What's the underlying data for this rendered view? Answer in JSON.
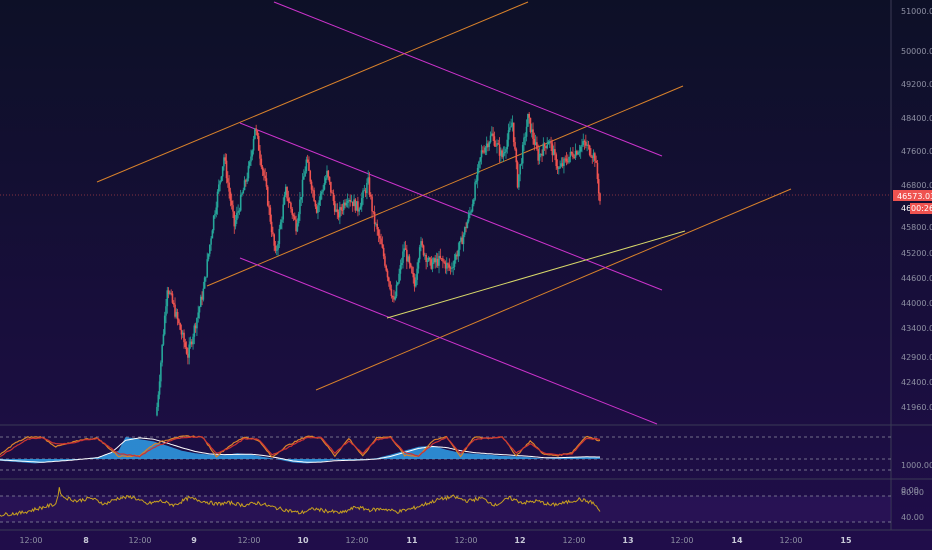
{
  "theme": {
    "bg_top": "#0d1027",
    "bg_bottom": "#200d4a",
    "up": "#26a69a",
    "down": "#ef5350",
    "channel_magenta": "#cc33cc",
    "trend_orange": "#d9822b",
    "trend_yellow": "#d8d86a",
    "stoch_k": "#d9822b",
    "stoch_d": "#cc3333",
    "macd_hist": "#2f9fe8",
    "macd_line": "#ffffff",
    "rsi": "#c8a020",
    "axis_text": "#8e90a3"
  },
  "price_axis": {
    "ticks": [
      "51000.00",
      "50000.00",
      "49200.00",
      "48400.00",
      "47600.00",
      "46800.00",
      "45800.00",
      "45200.00",
      "44600.00",
      "44000.00",
      "43400.00",
      "42900.00",
      "42400.00",
      "41960.00"
    ],
    "current_price": "46573.03",
    "current_price_short": "46",
    "countdown": "00:26"
  },
  "osc1_axis": {
    "ticks": [
      "1000.00",
      "0.00"
    ]
  },
  "osc2_axis": {
    "ticks": [
      "80.00",
      "40.00"
    ]
  },
  "time_axis": {
    "ticks": [
      "12:00",
      "8",
      "12:00",
      "9",
      "12:00",
      "10",
      "12:00",
      "11",
      "12:00",
      "12",
      "12:00",
      "13",
      "12:00",
      "14",
      "12:00",
      "15"
    ]
  },
  "chart_data": [
    {
      "type": "candlestick",
      "xlim": [
        0,
        180
      ],
      "ylim": [
        41800,
        51300
      ],
      "ohlc_close_anchors": [
        [
          0,
          41800
        ],
        [
          2,
          44600
        ],
        [
          6,
          43000
        ],
        [
          9,
          44500
        ],
        [
          11,
          46200
        ],
        [
          13,
          47600
        ],
        [
          15,
          46000
        ],
        [
          18,
          47400
        ],
        [
          19,
          48300
        ],
        [
          21,
          47000
        ],
        [
          23,
          45300
        ],
        [
          25,
          46800
        ],
        [
          27,
          46000
        ],
        [
          29,
          47500
        ],
        [
          31,
          46400
        ],
        [
          33,
          47200
        ],
        [
          35,
          46200
        ],
        [
          37,
          46700
        ],
        [
          39,
          46400
        ],
        [
          41,
          47000
        ],
        [
          42,
          46200
        ],
        [
          44,
          45300
        ],
        [
          46,
          44200
        ],
        [
          48,
          45500
        ],
        [
          50,
          44600
        ],
        [
          51,
          45600
        ],
        [
          53,
          45100
        ],
        [
          55,
          45200
        ],
        [
          57,
          45000
        ],
        [
          59,
          45600
        ],
        [
          61,
          46400
        ],
        [
          63,
          47700
        ],
        [
          65,
          48100
        ],
        [
          67,
          47600
        ],
        [
          69,
          48400
        ],
        [
          70,
          47000
        ],
        [
          72,
          48500
        ],
        [
          74,
          47600
        ],
        [
          76,
          48000
        ],
        [
          78,
          47300
        ],
        [
          80,
          47600
        ],
        [
          83,
          47900
        ],
        [
          85,
          47600
        ],
        [
          86,
          46573
        ]
      ],
      "title": "",
      "xlabel": "",
      "ylabel": ""
    },
    {
      "type": "line",
      "name": "stochastic",
      "ylim": [
        -300,
        1300
      ],
      "series_k_anchors": [
        [
          0,
          180
        ],
        [
          2,
          700
        ],
        [
          4,
          990
        ],
        [
          6,
          1000
        ],
        [
          8,
          560
        ],
        [
          10,
          720
        ],
        [
          12,
          900
        ],
        [
          14,
          940
        ],
        [
          17,
          120
        ],
        [
          20,
          160
        ],
        [
          22,
          660
        ],
        [
          25,
          980
        ],
        [
          27,
          1040
        ],
        [
          29,
          1000
        ],
        [
          31,
          120
        ],
        [
          33,
          620
        ],
        [
          35,
          1000
        ],
        [
          37,
          860
        ],
        [
          39,
          80
        ],
        [
          41,
          580
        ],
        [
          44,
          1040
        ],
        [
          46,
          960
        ],
        [
          48,
          140
        ],
        [
          50,
          940
        ],
        [
          52,
          120
        ],
        [
          54,
          980
        ],
        [
          56,
          1000
        ],
        [
          58,
          160
        ],
        [
          60,
          140
        ],
        [
          62,
          820
        ],
        [
          64,
          1020
        ],
        [
          66,
          120
        ],
        [
          68,
          1000
        ],
        [
          70,
          940
        ],
        [
          72,
          1020
        ],
        [
          74,
          140
        ],
        [
          76,
          820
        ],
        [
          78,
          200
        ],
        [
          80,
          160
        ],
        [
          82,
          300
        ],
        [
          84,
          1040
        ],
        [
          86,
          830
        ]
      ],
      "series_d_anchors": [
        [
          0,
          120
        ],
        [
          2,
          520
        ],
        [
          4,
          900
        ],
        [
          6,
          970
        ],
        [
          8,
          680
        ],
        [
          10,
          700
        ],
        [
          12,
          860
        ],
        [
          14,
          930
        ],
        [
          17,
          240
        ],
        [
          20,
          120
        ],
        [
          22,
          520
        ],
        [
          25,
          900
        ],
        [
          27,
          1000
        ],
        [
          29,
          1000
        ],
        [
          31,
          260
        ],
        [
          33,
          500
        ],
        [
          35,
          920
        ],
        [
          37,
          900
        ],
        [
          39,
          200
        ],
        [
          41,
          470
        ],
        [
          44,
          970
        ],
        [
          46,
          980
        ],
        [
          48,
          280
        ],
        [
          50,
          820
        ],
        [
          52,
          260
        ],
        [
          54,
          880
        ],
        [
          56,
          980
        ],
        [
          58,
          280
        ],
        [
          60,
          140
        ],
        [
          62,
          680
        ],
        [
          64,
          990
        ],
        [
          66,
          250
        ],
        [
          68,
          880
        ],
        [
          70,
          960
        ],
        [
          72,
          1000
        ],
        [
          74,
          280
        ],
        [
          76,
          700
        ],
        [
          78,
          260
        ],
        [
          80,
          180
        ],
        [
          82,
          240
        ],
        [
          84,
          940
        ],
        [
          86,
          900
        ]
      ],
      "macd_hist_anchors": [
        [
          0,
          -80
        ],
        [
          5,
          -200
        ],
        [
          10,
          -60
        ],
        [
          14,
          80
        ],
        [
          17,
          380
        ],
        [
          18,
          1000
        ],
        [
          20,
          900
        ],
        [
          22,
          800
        ],
        [
          24,
          600
        ],
        [
          26,
          380
        ],
        [
          28,
          260
        ],
        [
          30,
          200
        ],
        [
          32,
          170
        ],
        [
          34,
          260
        ],
        [
          36,
          200
        ],
        [
          38,
          80
        ],
        [
          40,
          -30
        ],
        [
          42,
          -160
        ],
        [
          44,
          -200
        ],
        [
          46,
          -120
        ],
        [
          48,
          -40
        ],
        [
          50,
          -60
        ],
        [
          52,
          -30
        ],
        [
          54,
          40
        ],
        [
          56,
          200
        ],
        [
          58,
          380
        ],
        [
          60,
          560
        ],
        [
          62,
          600
        ],
        [
          64,
          420
        ],
        [
          66,
          280
        ],
        [
          68,
          240
        ],
        [
          70,
          200
        ],
        [
          72,
          140
        ],
        [
          74,
          120
        ],
        [
          76,
          80
        ],
        [
          78,
          0
        ],
        [
          80,
          60
        ],
        [
          82,
          90
        ],
        [
          84,
          110
        ],
        [
          86,
          80
        ]
      ],
      "macd_line_anchors": [
        [
          0,
          -40
        ],
        [
          6,
          -150
        ],
        [
          10,
          -60
        ],
        [
          14,
          60
        ],
        [
          16,
          300
        ],
        [
          18,
          850
        ],
        [
          20,
          960
        ],
        [
          22,
          900
        ],
        [
          24,
          720
        ],
        [
          26,
          520
        ],
        [
          28,
          340
        ],
        [
          30,
          230
        ],
        [
          32,
          200
        ],
        [
          34,
          210
        ],
        [
          36,
          220
        ],
        [
          38,
          150
        ],
        [
          40,
          40
        ],
        [
          42,
          -90
        ],
        [
          44,
          -150
        ],
        [
          46,
          -140
        ],
        [
          48,
          -80
        ],
        [
          50,
          -60
        ],
        [
          52,
          -40
        ],
        [
          54,
          0
        ],
        [
          56,
          120
        ],
        [
          58,
          300
        ],
        [
          60,
          480
        ],
        [
          62,
          570
        ],
        [
          64,
          520
        ],
        [
          66,
          380
        ],
        [
          68,
          290
        ],
        [
          70,
          240
        ],
        [
          72,
          200
        ],
        [
          74,
          160
        ],
        [
          76,
          120
        ],
        [
          78,
          60
        ],
        [
          80,
          60
        ],
        [
          82,
          80
        ],
        [
          84,
          100
        ],
        [
          86,
          90
        ]
      ],
      "reference_lines": [
        1000,
        0,
        -500
      ]
    },
    {
      "type": "line",
      "name": "rsi",
      "ylim": [
        30,
        95
      ],
      "series_anchors": [
        [
          0,
          42
        ],
        [
          3,
          45
        ],
        [
          8,
          60
        ],
        [
          8.5,
          85
        ],
        [
          9,
          72
        ],
        [
          11,
          65
        ],
        [
          13,
          70
        ],
        [
          15,
          60
        ],
        [
          17,
          70
        ],
        [
          19,
          72
        ],
        [
          21,
          60
        ],
        [
          23,
          65
        ],
        [
          25,
          58
        ],
        [
          27,
          70
        ],
        [
          29,
          65
        ],
        [
          31,
          60
        ],
        [
          33,
          62
        ],
        [
          35,
          58
        ],
        [
          37,
          62
        ],
        [
          39,
          55
        ],
        [
          41,
          50
        ],
        [
          43,
          45
        ],
        [
          45,
          52
        ],
        [
          47,
          48
        ],
        [
          49,
          45
        ],
        [
          51,
          55
        ],
        [
          53,
          50
        ],
        [
          55,
          52
        ],
        [
          57,
          47
        ],
        [
          59,
          52
        ],
        [
          61,
          60
        ],
        [
          63,
          68
        ],
        [
          65,
          72
        ],
        [
          67,
          65
        ],
        [
          69,
          70
        ],
        [
          71,
          58
        ],
        [
          73,
          70
        ],
        [
          75,
          62
        ],
        [
          77,
          65
        ],
        [
          79,
          58
        ],
        [
          81,
          62
        ],
        [
          83,
          68
        ],
        [
          85,
          62
        ],
        [
          86,
          48
        ]
      ],
      "reference_lines": [
        72,
        40
      ]
    }
  ]
}
